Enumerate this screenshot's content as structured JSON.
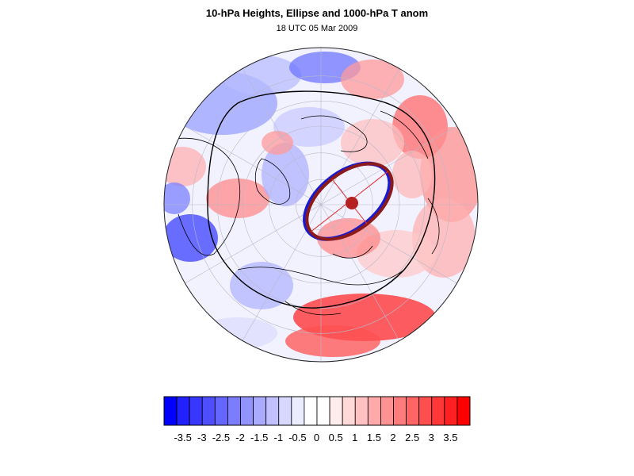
{
  "title": "10-hPa Heights, Ellipse and 1000-hPa T anom",
  "subtitle": "18 UTC 05 Mar 2009",
  "map": {
    "projection": "orthographic-polar-north",
    "field": "1000-hPa temperature anomaly",
    "overlays": [
      "10-hPa height contour",
      "vortex ellipse",
      "ellipse axes",
      "ellipse centroid",
      "coastlines",
      "graticule"
    ],
    "colors": {
      "ellipse_outline": "#8b1a1a",
      "ellipse_edge_blue": "#1a1ad0",
      "axis_line": "#e03030",
      "centroid": "#b52020",
      "height_contour": "#000000",
      "coastline": "#000000",
      "graticule": "#b8b8c8"
    }
  },
  "colorbar": {
    "tick_labels": [
      "-3.5",
      "-3",
      "-2.5",
      "-2",
      "-1.5",
      "-1",
      "-0.5",
      "0",
      "0.5",
      "1",
      "1.5",
      "2",
      "2.5",
      "3",
      "3.5"
    ],
    "colors": [
      "#0000ff",
      "#2121ff",
      "#3737ff",
      "#4e4eff",
      "#6565ff",
      "#7c7cff",
      "#9393ff",
      "#aaaaff",
      "#c1c1ff",
      "#d8d8ff",
      "#ececff",
      "#ffffff",
      "#ffffff",
      "#ffecec",
      "#ffd8d8",
      "#ffc1c1",
      "#ffaaaa",
      "#ff9393",
      "#ff7c7c",
      "#ff6565",
      "#ff4e4e",
      "#ff3737",
      "#ff2121",
      "#ff0000"
    ]
  }
}
